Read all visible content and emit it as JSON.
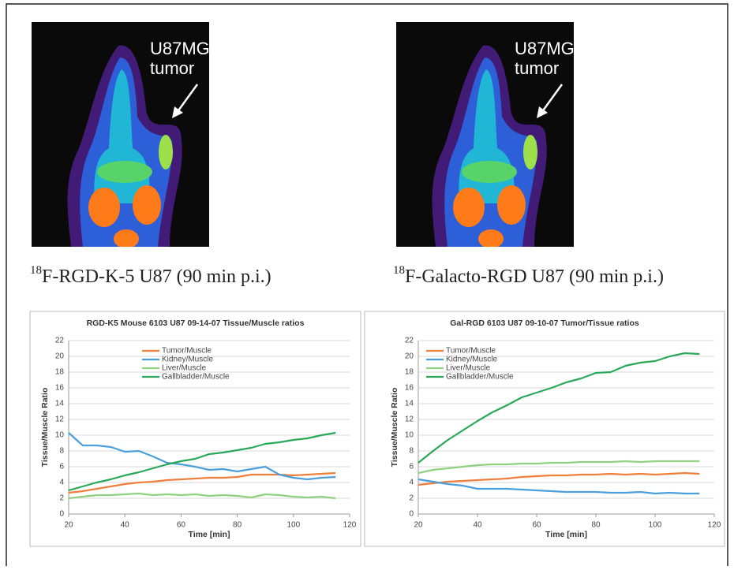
{
  "images": [
    {
      "annotation_lines": [
        "U87MG",
        "tumor"
      ],
      "caption_sup": "18",
      "caption": "F-RGD-K-5 U87 (90 min p.i.)"
    },
    {
      "annotation_lines": [
        "U87MG",
        "tumor"
      ],
      "caption_sup": "18",
      "caption": "F-Galacto-RGD U87 (90 min p.i.)"
    }
  ],
  "chart_data": [
    {
      "type": "line",
      "title": "RGD-K5 Mouse 6103 U87 09-14-07 Tissue/Muscle ratios",
      "x_label": "Time [min]",
      "y_label": "Tissue/Muscle Ratio",
      "x": [
        20,
        25,
        30,
        35,
        40,
        45,
        50,
        55,
        60,
        65,
        70,
        75,
        80,
        85,
        90,
        95,
        100,
        105,
        110,
        115
      ],
      "xlim": [
        20,
        120
      ],
      "xticks": [
        20,
        40,
        60,
        80,
        100,
        120
      ],
      "ylim": [
        0,
        22
      ],
      "yticks": [
        0,
        2,
        4,
        6,
        8,
        10,
        12,
        14,
        16,
        18,
        20,
        22
      ],
      "grid": true,
      "legend": "top-center",
      "series": [
        {
          "name": "Tumor/Muscle",
          "color": "#f07f3c",
          "values": [
            2.7,
            2.9,
            3.2,
            3.5,
            3.8,
            4.0,
            4.1,
            4.3,
            4.4,
            4.5,
            4.6,
            4.6,
            4.7,
            5.0,
            5.0,
            5.0,
            4.9,
            5.0,
            5.1,
            5.2
          ]
        },
        {
          "name": "Kidney/Muscle",
          "color": "#4a9fdc",
          "values": [
            10.3,
            8.7,
            8.7,
            8.5,
            7.9,
            8.0,
            7.3,
            6.5,
            6.3,
            6.0,
            5.6,
            5.7,
            5.4,
            5.7,
            6.0,
            5.0,
            4.6,
            4.4,
            4.6,
            4.7
          ]
        },
        {
          "name": "Liver/Muscle",
          "color": "#8fd17e",
          "values": [
            2.0,
            2.2,
            2.4,
            2.4,
            2.5,
            2.6,
            2.4,
            2.5,
            2.4,
            2.5,
            2.3,
            2.4,
            2.3,
            2.1,
            2.5,
            2.4,
            2.2,
            2.1,
            2.2,
            2.0
          ]
        },
        {
          "name": "Gallbladder/Muscle",
          "color": "#2aa85a",
          "values": [
            3.0,
            3.5,
            4.0,
            4.4,
            4.9,
            5.3,
            5.8,
            6.3,
            6.7,
            7.0,
            7.6,
            7.8,
            8.1,
            8.4,
            8.9,
            9.1,
            9.4,
            9.6,
            10.0,
            10.3
          ]
        }
      ]
    },
    {
      "type": "line",
      "title": "Gal-RGD 6103 U87 09-10-07 Tumor/Tissue ratios",
      "x_label": "Time [min]",
      "y_label": "Tissue/Muscle Ratio",
      "x": [
        20,
        25,
        30,
        35,
        40,
        45,
        50,
        55,
        60,
        65,
        70,
        75,
        80,
        85,
        90,
        95,
        100,
        105,
        110,
        115
      ],
      "xlim": [
        20,
        120
      ],
      "xticks": [
        20,
        40,
        60,
        80,
        100,
        120
      ],
      "ylim": [
        0,
        22
      ],
      "yticks": [
        0,
        2,
        4,
        6,
        8,
        10,
        12,
        14,
        16,
        18,
        20,
        22
      ],
      "grid": true,
      "legend": "top-left",
      "series": [
        {
          "name": "Tumor/Muscle",
          "color": "#f07f3c",
          "values": [
            3.7,
            3.9,
            4.1,
            4.2,
            4.3,
            4.4,
            4.5,
            4.7,
            4.8,
            4.9,
            4.9,
            5.0,
            5.0,
            5.1,
            5.0,
            5.1,
            5.0,
            5.1,
            5.2,
            5.1
          ]
        },
        {
          "name": "Kidney/Muscle",
          "color": "#4a9fdc",
          "values": [
            4.4,
            4.1,
            3.8,
            3.6,
            3.2,
            3.2,
            3.2,
            3.1,
            3.0,
            2.9,
            2.8,
            2.8,
            2.8,
            2.7,
            2.7,
            2.8,
            2.6,
            2.7,
            2.6,
            2.6
          ]
        },
        {
          "name": "Liver/Muscle",
          "color": "#8fd17e",
          "values": [
            5.2,
            5.6,
            5.8,
            6.0,
            6.2,
            6.3,
            6.3,
            6.4,
            6.4,
            6.5,
            6.5,
            6.6,
            6.6,
            6.6,
            6.7,
            6.6,
            6.7,
            6.7,
            6.7,
            6.7
          ]
        },
        {
          "name": "Gallbladder/Muscle",
          "color": "#2aa85a",
          "values": [
            6.5,
            8.0,
            9.4,
            10.6,
            11.8,
            12.9,
            13.8,
            14.8,
            15.4,
            16.0,
            16.7,
            17.2,
            17.9,
            18.0,
            18.8,
            19.2,
            19.4,
            20.0,
            20.4,
            20.3
          ]
        }
      ]
    }
  ]
}
